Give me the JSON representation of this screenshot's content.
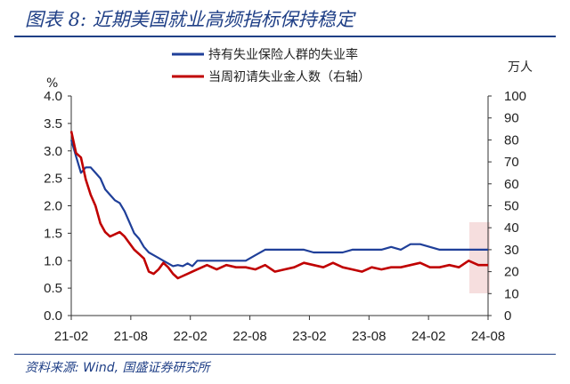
{
  "header": {
    "title": "图表 8:  近期美国就业高频指标保持稳定"
  },
  "footer": {
    "source": "资料来源:  Wind,  国盛证券研究所"
  },
  "chart_data": {
    "type": "line",
    "title": "近期美国就业高频指标保持稳定",
    "left_axis": {
      "label": "%",
      "ylim": [
        0,
        4.0
      ],
      "ticks": [
        "0.0",
        "0.5",
        "1.0",
        "1.5",
        "2.0",
        "2.5",
        "3.0",
        "3.5",
        "4.0"
      ]
    },
    "right_axis": {
      "label": "万人",
      "ylim": [
        0,
        100
      ],
      "ticks": [
        "0",
        "10",
        "20",
        "30",
        "40",
        "50",
        "60",
        "70",
        "80",
        "90",
        "100"
      ]
    },
    "x_ticks": [
      "21-02",
      "21-08",
      "22-02",
      "22-08",
      "23-02",
      "23-08",
      "24-02",
      "24-08"
    ],
    "legend_position": "top-center",
    "highlight": "shaded region near latest data (2024-06 to 2024-08)",
    "series": [
      {
        "name": "持有失业保险人群的失业率",
        "axis": "left",
        "color": "#1f3f99",
        "x": [
          0,
          0.5,
          1,
          1.5,
          2,
          2.5,
          3,
          3.5,
          4,
          4.5,
          5,
          5.5,
          6,
          6.5,
          7,
          7.5,
          8,
          8.5,
          9,
          9.5,
          10,
          10.5,
          11,
          11.5,
          12,
          12.5,
          13,
          14,
          15,
          16,
          17,
          18,
          19,
          20,
          21,
          22,
          23,
          24,
          25,
          26,
          27,
          28,
          29,
          30,
          31,
          32,
          33,
          34,
          35,
          36,
          37,
          38,
          39,
          40,
          41,
          42,
          43
        ],
        "values": [
          3.2,
          2.9,
          2.6,
          2.7,
          2.7,
          2.6,
          2.5,
          2.3,
          2.2,
          2.1,
          2.05,
          1.9,
          1.7,
          1.5,
          1.4,
          1.25,
          1.15,
          1.1,
          1.05,
          1.0,
          0.95,
          0.9,
          0.92,
          0.9,
          0.95,
          0.9,
          1.0,
          1.0,
          1.0,
          1.0,
          1.0,
          1.0,
          1.1,
          1.2,
          1.2,
          1.2,
          1.2,
          1.2,
          1.15,
          1.15,
          1.15,
          1.15,
          1.2,
          1.2,
          1.2,
          1.2,
          1.25,
          1.2,
          1.3,
          1.3,
          1.25,
          1.2,
          1.2,
          1.2,
          1.2,
          1.2,
          1.2
        ]
      },
      {
        "name": "当周初请失业金人数（右轴）",
        "axis": "right",
        "color": "#c00000",
        "x": [
          0,
          0.5,
          1,
          1.5,
          2,
          2.5,
          3,
          3.5,
          4,
          4.5,
          5,
          5.5,
          6,
          6.5,
          7,
          7.5,
          8,
          8.5,
          9,
          9.5,
          10,
          10.5,
          11,
          11.5,
          12,
          12.5,
          13,
          14,
          15,
          16,
          17,
          18,
          19,
          20,
          21,
          22,
          23,
          24,
          25,
          26,
          27,
          28,
          29,
          30,
          31,
          32,
          33,
          34,
          35,
          36,
          37,
          38,
          39,
          40,
          41,
          42,
          43
        ],
        "values": [
          84,
          74,
          72,
          62,
          55,
          50,
          42,
          38,
          36,
          37,
          38,
          36,
          33,
          30,
          28,
          26,
          20,
          19,
          21,
          24,
          22,
          19,
          17,
          18,
          19,
          20,
          21,
          23,
          21,
          23,
          22,
          22,
          21,
          23,
          20,
          21,
          22,
          24,
          23,
          22,
          24,
          22,
          21,
          20,
          22,
          21,
          22,
          22,
          23,
          24,
          22,
          22,
          23,
          22,
          25,
          23,
          23
        ]
      }
    ]
  }
}
